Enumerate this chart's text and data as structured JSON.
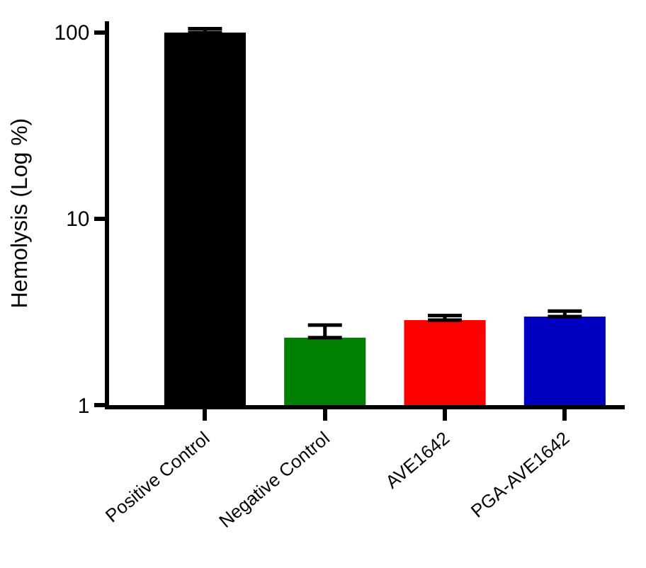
{
  "chart_data": {
    "type": "bar",
    "ylabel": "Hemolysis (Log %)",
    "categories": [
      "Positive Control",
      "Negative Control",
      "AVE1642",
      "PGA-AVE1642"
    ],
    "values": [
      100,
      2.3,
      2.86,
      2.99
    ],
    "colors": [
      "#000000",
      "#008000",
      "#ff0000",
      "#0000c0"
    ],
    "errors": [
      [
        100,
        105
      ],
      [
        2.3,
        2.69
      ],
      [
        2.86,
        3.03
      ],
      [
        2.99,
        3.2
      ]
    ],
    "log": "y",
    "ylim": [
      1,
      115
    ],
    "yticks": [
      1,
      10,
      100
    ]
  }
}
